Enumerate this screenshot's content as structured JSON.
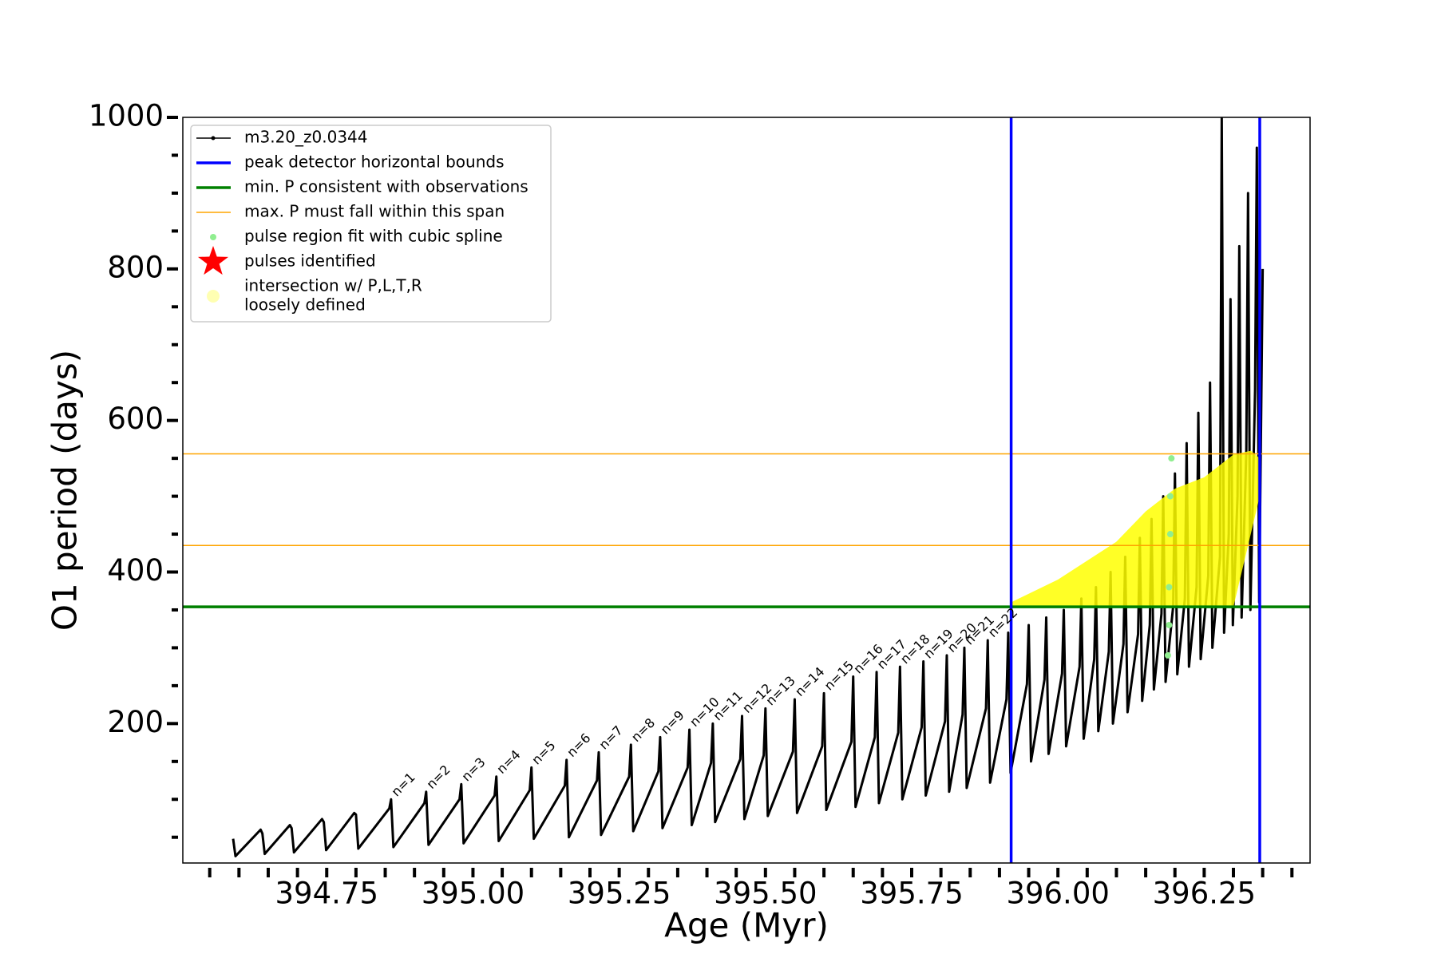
{
  "chart_data": {
    "type": "line",
    "xlabel": "Age (Myr)",
    "ylabel": "O1 period (days)",
    "xlim": [
      394.504,
      396.431
    ],
    "ylim": [
      16,
      1000
    ],
    "xticks": [
      394.75,
      {
        "value": 395,
        "label": "395.00"
      },
      395.25,
      {
        "value": 395.5,
        "label": "395.50"
      },
      395.75,
      {
        "value": 396,
        "label": "396.00"
      },
      396.25
    ],
    "xminor": [
      394.55,
      394.6,
      394.65,
      394.7,
      394.8,
      394.85,
      394.9,
      394.95,
      395.05,
      395.1,
      395.15,
      395.2,
      395.3,
      395.35,
      395.4,
      395.45,
      395.55,
      395.6,
      395.65,
      395.7,
      395.8,
      395.85,
      395.9,
      395.95,
      396.05,
      396.1,
      396.15,
      396.2,
      396.3,
      396.35,
      396.4
    ],
    "yticks": [
      200,
      400,
      600,
      800,
      1000
    ],
    "yminor": [
      50,
      100,
      150,
      250,
      300,
      350,
      450,
      500,
      550,
      650,
      700,
      750,
      850,
      900,
      950
    ],
    "legend": "upper left",
    "series": [
      {
        "name": "m3.20_z0.0344",
        "color": "#000000",
        "x": [
          394.59,
          394.594,
          394.637,
          394.64,
          394.644,
          394.687,
          394.69,
          394.694,
          394.742,
          394.745,
          394.749,
          394.797,
          394.8,
          394.804,
          394.857,
          394.86,
          394.864,
          394.917,
          394.92,
          394.924,
          394.977,
          394.98,
          394.984,
          395.037,
          395.04,
          395.044,
          395.097,
          395.1,
          395.104,
          395.157,
          395.16,
          395.164,
          395.212,
          395.215,
          395.219,
          395.267,
          395.27,
          395.274,
          395.317,
          395.32,
          395.324,
          395.367,
          395.37,
          395.374,
          395.407,
          395.41,
          395.414,
          395.457,
          395.46,
          395.464,
          395.497,
          395.5,
          395.504,
          395.547,
          395.55,
          395.554,
          395.597,
          395.6,
          395.604,
          395.647,
          395.65,
          395.654,
          395.687,
          395.69,
          395.694,
          395.727,
          395.73,
          395.734,
          395.767,
          395.77,
          395.774,
          395.807,
          395.81,
          395.814,
          395.837,
          395.84,
          395.844,
          395.877,
          395.88,
          395.884,
          395.912,
          395.915,
          395.919,
          395.947,
          395.95,
          395.954,
          395.977,
          395.98,
          395.984,
          396.007,
          396.01,
          396.014,
          396.037,
          396.04,
          396.044,
          396.062,
          396.065,
          396.069,
          396.087,
          396.09,
          396.094,
          396.112,
          396.115,
          396.119,
          396.137,
          396.14,
          396.144,
          396.157,
          396.16,
          396.164,
          396.177,
          396.18,
          396.184,
          396.197,
          396.2,
          396.204,
          396.217,
          396.22,
          396.224,
          396.237,
          396.24,
          396.244,
          396.257,
          396.26,
          396.264,
          396.277,
          396.28,
          396.284,
          396.292,
          396.295,
          396.299,
          396.307,
          396.31,
          396.314,
          396.322,
          396.325,
          396.329,
          396.337,
          396.34,
          396.344,
          396.35
        ],
        "values": [
          48,
          25,
          60,
          55,
          28,
          66,
          62,
          30,
          74,
          70,
          33,
          82,
          80,
          35,
          88,
          100,
          37,
          95,
          110,
          40,
          100,
          120,
          42,
          105,
          130,
          45,
          112,
          142,
          48,
          118,
          152,
          50,
          125,
          162,
          53,
          130,
          172,
          58,
          137,
          182,
          62,
          142,
          192,
          66,
          148,
          200,
          70,
          153,
          210,
          74,
          158,
          220,
          78,
          163,
          232,
          82,
          170,
          240,
          86,
          176,
          262,
          90,
          182,
          268,
          95,
          188,
          275,
          100,
          195,
          282,
          105,
          203,
          290,
          110,
          212,
          300,
          115,
          220,
          310,
          122,
          232,
          320,
          135,
          252,
          330,
          150,
          258,
          340,
          160,
          266,
          350,
          170,
          275,
          365,
          180,
          285,
          380,
          190,
          295,
          400,
          200,
          305,
          420,
          215,
          318,
          445,
          230,
          330,
          470,
          245,
          345,
          500,
          255,
          355,
          530,
          265,
          365,
          570,
          275,
          380,
          610,
          285,
          395,
          650,
          300,
          420,
          1000,
          320,
          450,
          760,
          330,
          500,
          830,
          340,
          560,
          900,
          350,
          640,
          960,
          360,
          800
        ]
      }
    ],
    "vlines": {
      "name": "peak detector horizontal bounds",
      "color": "#0000ff",
      "values": [
        395.92,
        396.345
      ]
    },
    "hline_min": {
      "name": "min. P consistent with observations",
      "color": "#008000",
      "value": 354
    },
    "hline_max": {
      "name": "max. P must fall within this span",
      "color": "#ffa500",
      "values": [
        435,
        556
      ]
    },
    "spline": {
      "name": "pulse region fit with cubic spline",
      "color": "#90ee90",
      "x": [
        396.188,
        396.19,
        396.19,
        396.192,
        396.192,
        396.194
      ],
      "values": [
        290,
        330,
        380,
        450,
        500,
        550
      ]
    },
    "identified": {
      "name": "pulses identified",
      "color": "#ff0000"
    },
    "intersection": {
      "name_lines": [
        "intersection w/ P,L,T,R",
        "loosely defined"
      ],
      "color": "#ffff00",
      "x": [
        395.92,
        396.0,
        396.1,
        396.15,
        396.2,
        396.25,
        396.3,
        396.33,
        396.345,
        396.345,
        396.3,
        396.15,
        395.92
      ],
      "values": [
        360,
        390,
        440,
        480,
        510,
        525,
        555,
        560,
        550,
        500,
        354,
        354,
        354
      ]
    },
    "annotations": [
      {
        "text": "n=1",
        "x": 394.86,
        "y": 100
      },
      {
        "text": "n=2",
        "x": 394.92,
        "y": 110
      },
      {
        "text": "n=3",
        "x": 394.98,
        "y": 120
      },
      {
        "text": "n=4",
        "x": 395.04,
        "y": 130
      },
      {
        "text": "n=5",
        "x": 395.1,
        "y": 142
      },
      {
        "text": "n=6",
        "x": 395.16,
        "y": 152
      },
      {
        "text": "n=7",
        "x": 395.215,
        "y": 162
      },
      {
        "text": "n=8",
        "x": 395.27,
        "y": 172
      },
      {
        "text": "n=9",
        "x": 395.32,
        "y": 182
      },
      {
        "text": "n=10",
        "x": 395.37,
        "y": 192
      },
      {
        "text": "n=11",
        "x": 395.41,
        "y": 200
      },
      {
        "text": "n=12",
        "x": 395.46,
        "y": 210
      },
      {
        "text": "n=13",
        "x": 395.5,
        "y": 220
      },
      {
        "text": "n=14",
        "x": 395.55,
        "y": 232
      },
      {
        "text": "n=15",
        "x": 395.6,
        "y": 240
      },
      {
        "text": "n=16",
        "x": 395.65,
        "y": 262
      },
      {
        "text": "n=17",
        "x": 395.69,
        "y": 268
      },
      {
        "text": "n=18",
        "x": 395.73,
        "y": 275
      },
      {
        "text": "n=19",
        "x": 395.77,
        "y": 282
      },
      {
        "text": "n=20",
        "x": 395.81,
        "y": 290
      },
      {
        "text": "n=21",
        "x": 395.84,
        "y": 300
      },
      {
        "text": "n=22",
        "x": 395.88,
        "y": 310
      }
    ]
  }
}
